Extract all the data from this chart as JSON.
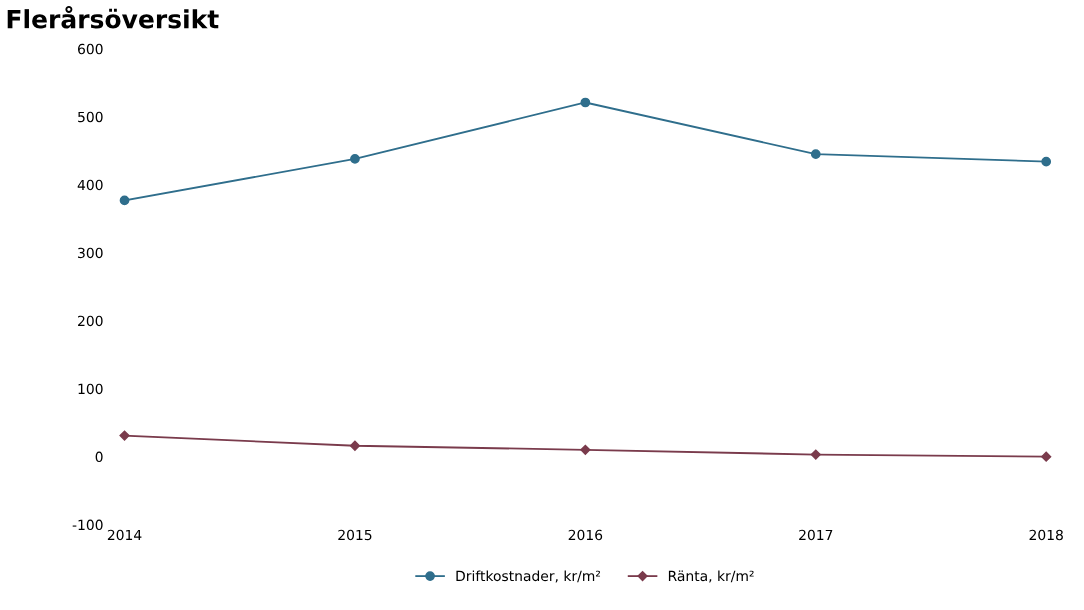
{
  "chart_data": {
    "type": "line",
    "title": "Flerårsöversikt",
    "categories": [
      "2014",
      "2015",
      "2016",
      "2017",
      "2018"
    ],
    "series": [
      {
        "name": "Driftkostnader, kr/m²",
        "color": "#2f6e8c",
        "marker": "circle",
        "values": [
          377,
          438,
          521,
          445,
          434
        ]
      },
      {
        "name": "Ränta, kr/m²",
        "color": "#7a3b4c",
        "marker": "diamond",
        "values": [
          31,
          16,
          10,
          3,
          0
        ]
      }
    ],
    "ylim": [
      -100,
      600
    ],
    "yticks": [
      -100,
      0,
      100,
      200,
      300,
      400,
      500,
      600
    ],
    "grid": false,
    "legend": "bottom",
    "line_style": "solid"
  }
}
